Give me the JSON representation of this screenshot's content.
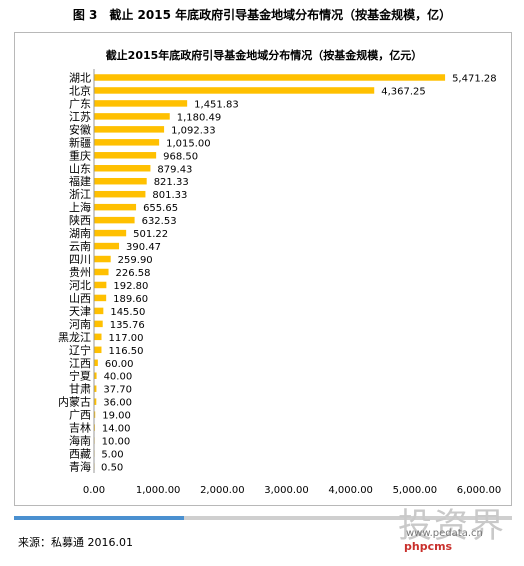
{
  "figure_title": "图 3　截止 2015 年底政府引导基金地域分布情况（按基金规模，亿）",
  "source": "来源：私募通  2016.01",
  "watermark": {
    "big_text": "投资界",
    "url": "www.pedata.cn",
    "logo": "phpcms"
  },
  "colors": {
    "bar": "#FFC000",
    "axis": "#999999",
    "accent_rule": "#4a90d0"
  },
  "chart_data": {
    "type": "bar",
    "orientation": "horizontal",
    "title": "截止2015年底政府引导基金地域分布情况（按基金规模，亿元）",
    "categories": [
      "湖北",
      "北京",
      "广东",
      "江苏",
      "安徽",
      "新疆",
      "重庆",
      "山东",
      "福建",
      "浙江",
      "上海",
      "陕西",
      "湖南",
      "云南",
      "四川",
      "贵州",
      "河北",
      "山西",
      "天津",
      "河南",
      "黑龙江",
      "辽宁",
      "江西",
      "宁夏",
      "甘肃",
      "内蒙古",
      "广西",
      "吉林",
      "海南",
      "西藏",
      "青海"
    ],
    "values": [
      5471.28,
      4367.25,
      1451.83,
      1180.49,
      1092.33,
      1015.0,
      968.5,
      879.43,
      821.33,
      801.33,
      655.65,
      632.53,
      501.22,
      390.47,
      259.9,
      226.58,
      192.8,
      189.6,
      145.5,
      135.76,
      117.0,
      116.5,
      60.0,
      40.0,
      37.7,
      36.0,
      19.0,
      14.0,
      10.0,
      5.0,
      0.5
    ],
    "value_labels": [
      "5,471.28",
      "4,367.25",
      "1,451.83",
      "1,180.49",
      "1,092.33",
      "1,015.00",
      "968.50",
      "879.43",
      "821.33",
      "801.33",
      "655.65",
      "632.53",
      "501.22",
      "390.47",
      "259.90",
      "226.58",
      "192.80",
      "189.60",
      "145.50",
      "135.76",
      "117.00",
      "116.50",
      "60.00",
      "40.00",
      "37.70",
      "36.00",
      "19.00",
      "14.00",
      "10.00",
      "5.00",
      "0.50"
    ],
    "xlim": [
      0,
      6000
    ],
    "xticks": [
      0,
      1000,
      2000,
      3000,
      4000,
      5000,
      6000
    ],
    "xtick_labels": [
      "0.00",
      "1,000.00",
      "2,000.00",
      "3,000.00",
      "4,000.00",
      "5,000.00",
      "6,000.00"
    ],
    "grid": false,
    "legend": "none"
  }
}
